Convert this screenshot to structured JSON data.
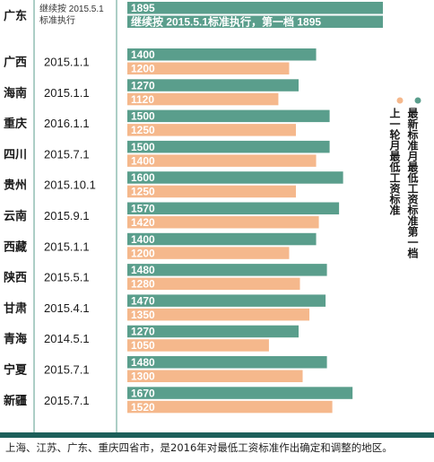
{
  "chart_data": {
    "type": "bar",
    "orientation": "horizontal",
    "categories": [
      "广东",
      "广西",
      "海南",
      "重庆",
      "四川",
      "贵州",
      "云南",
      "西藏",
      "陕西",
      "甘肃",
      "青海",
      "宁夏",
      "新疆"
    ],
    "dates": [
      "继续按 2015.5.1 标准执行",
      "2015.1.1",
      "2015.1.1",
      "2016.1.1",
      "2015.7.1",
      "2015.10.1",
      "2015.9.1",
      "2015.1.1",
      "2015.5.1",
      "2015.4.1",
      "2014.5.1",
      "2015.7.1",
      "2015.7.1"
    ],
    "series": [
      {
        "name": "最新标准月最低工资标准第一档",
        "color": "#5a9e8c",
        "values": [
          1895,
          1400,
          1270,
          1500,
          1500,
          1600,
          1570,
          1400,
          1480,
          1470,
          1270,
          1480,
          1670
        ]
      },
      {
        "name": "上一轮月最低工资标准",
        "color": "#f5b88c",
        "values": [
          null,
          1200,
          1120,
          1250,
          1400,
          1250,
          1420,
          1200,
          1280,
          1350,
          1050,
          1300,
          1520
        ]
      }
    ],
    "guangdong_note": "继续按 2015.5.1标准执行，第一档  1895",
    "xlim": [
      0,
      1895
    ]
  },
  "footer": {
    "text": "上海、江苏、广东、重庆四省市，是2016年对最低工资标准作出确定和调整的地区。"
  }
}
